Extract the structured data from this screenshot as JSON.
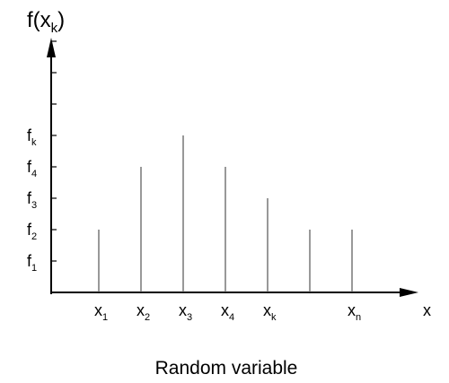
{
  "chart_data": {
    "type": "bar",
    "style": "stem",
    "y_axis_label": {
      "main": "f(x",
      "sub": "k",
      "close": ")"
    },
    "x_axis_label": "x",
    "caption": "Random variable",
    "categories": [
      {
        "main": "x",
        "sub": "1"
      },
      {
        "main": "x",
        "sub": "2"
      },
      {
        "main": "x",
        "sub": "3"
      },
      {
        "main": "x",
        "sub": "4"
      },
      {
        "main": "x",
        "sub": "k"
      },
      {
        "main": "",
        "sub": ""
      },
      {
        "main": "x",
        "sub": "n"
      }
    ],
    "values": [
      2,
      4,
      5,
      4,
      3,
      2,
      2
    ],
    "y_ticks": [
      {
        "value": 1,
        "main": "f",
        "sub": "1"
      },
      {
        "value": 2,
        "main": "f",
        "sub": "2"
      },
      {
        "value": 3,
        "main": "f",
        "sub": "3"
      },
      {
        "value": 4,
        "main": "f",
        "sub": "4"
      },
      {
        "value": 5,
        "main": "f",
        "sub": "k"
      },
      {
        "value": 6,
        "main": "",
        "sub": ""
      },
      {
        "value": 7,
        "main": "",
        "sub": ""
      },
      {
        "value": 8,
        "main": "",
        "sub": ""
      }
    ],
    "ylim": [
      0,
      8
    ],
    "grid": false,
    "legend": "none",
    "colors": {
      "axis": "#000000",
      "stem": "#555555"
    }
  }
}
